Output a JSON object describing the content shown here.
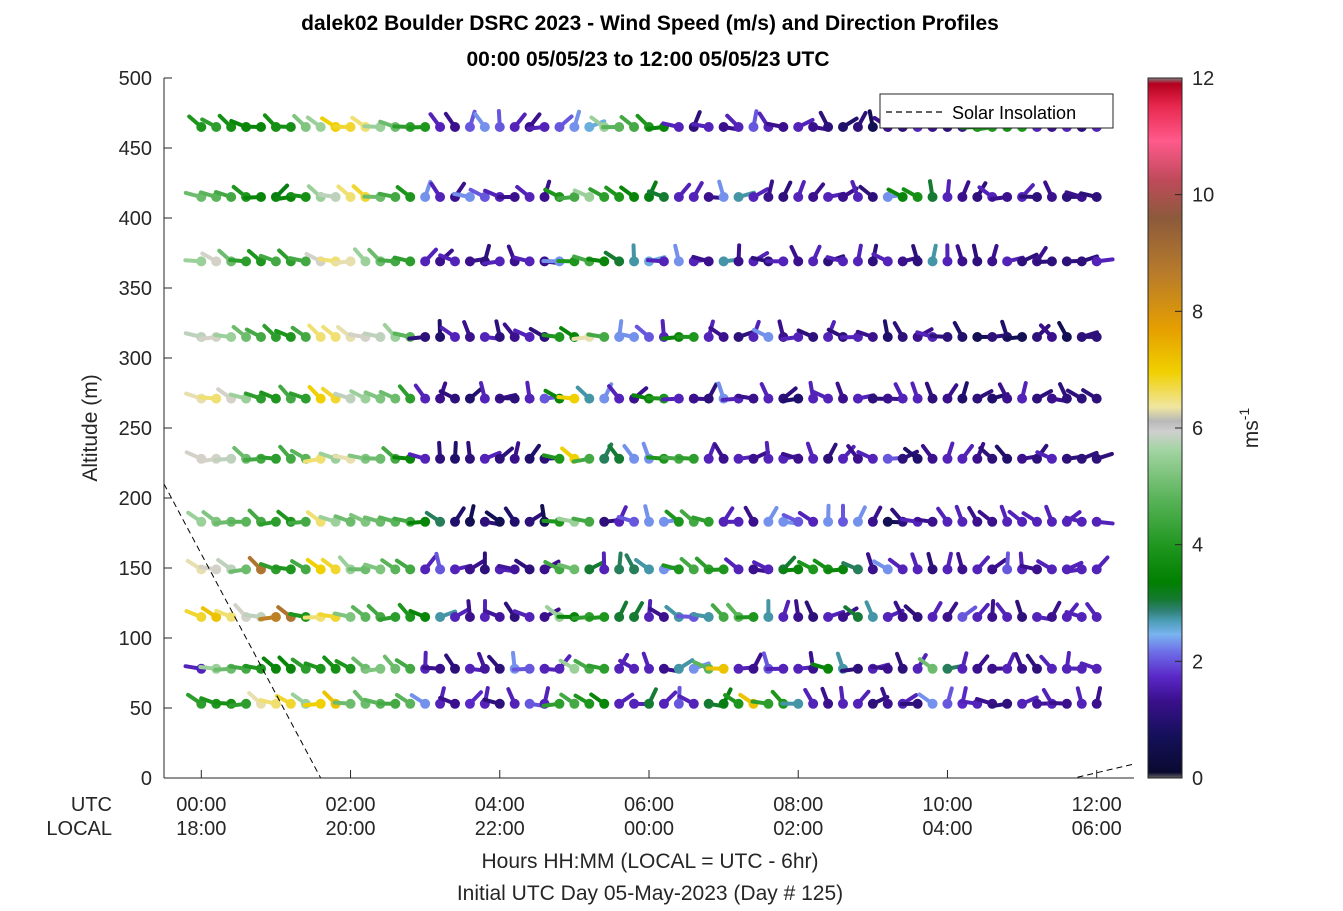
{
  "chart_data": {
    "type": "scatter",
    "title": "dalek02 Boulder DSRC 2023 - Wind Speed (m/s) and Direction Profiles",
    "subtitle": "00:00 05/05/23 to 12:00 05/05/23  UTC",
    "ylabel": "Altitude (m)",
    "xlabel": "Hours HH:MM  (LOCAL = UTC - 6hr)",
    "xlabel2": "Initial UTC Day 05-May-2023 (Day # 125)",
    "xlim": [
      -0.5,
      12.5
    ],
    "ylim": [
      0,
      500
    ],
    "y_ticks": [
      "0",
      "50",
      "100",
      "150",
      "200",
      "250",
      "300",
      "350",
      "400",
      "450",
      "500"
    ],
    "x_row_labels": [
      "UTC",
      "LOCAL"
    ],
    "x_ticks_utc": [
      "00:00",
      "02:00",
      "04:00",
      "06:00",
      "08:00",
      "10:00",
      "12:00"
    ],
    "x_ticks_local": [
      "18:00",
      "20:00",
      "22:00",
      "00:00",
      "02:00",
      "04:00",
      "06:00"
    ],
    "legend": "Solar Insolation",
    "legend_position": "top-right",
    "colorbar": {
      "label_base": "ms",
      "label_exp": "-1",
      "ticks": [
        "0",
        "2",
        "4",
        "6",
        "8",
        "10",
        "12"
      ],
      "range": [
        0,
        12
      ]
    },
    "altitudes": [
      53,
      78,
      115,
      149,
      183,
      228,
      271,
      315,
      369,
      415,
      465
    ],
    "time_step_hours": 0.2,
    "solar_line": [
      [
        -0.5,
        210
      ],
      [
        1.6,
        0
      ],
      [
        11.7,
        0
      ],
      [
        12.5,
        10
      ]
    ],
    "speed_profiles": [
      [
        4.2,
        4.0,
        3.8,
        4.2,
        6.2,
        6.5,
        6.8,
        5.5,
        7.0,
        7.2,
        5.0,
        5.0,
        4.8,
        4.5,
        4.8,
        2.0,
        1.5,
        1.2,
        1.6,
        1.5,
        1.0,
        1.5,
        1.8,
        1.5,
        4.2,
        4.5,
        4.0,
        3.5,
        1.5,
        1.5,
        3.0,
        1.5,
        1.8,
        1.5,
        3.0,
        3.2,
        4.0,
        7.2,
        4.2,
        4.0,
        2.5,
        1.5,
        1.2,
        1.5,
        1.5,
        1.0,
        1.2,
        1.5,
        1.0,
        2.0,
        1.8,
        1.6,
        1.5,
        1.2,
        1.0,
        1.5,
        1.3,
        1.5,
        1.2,
        1.5,
        1.2
      ],
      [
        1.5,
        5.5,
        5.0,
        4.5,
        4.0,
        3.5,
        3.5,
        4.2,
        4.0,
        3.8,
        4.0,
        5.0,
        5.2,
        5.0,
        4.5,
        1.5,
        1.2,
        1.0,
        1.5,
        1.3,
        1.0,
        2.0,
        1.8,
        1.5,
        1.5,
        5.5,
        4.5,
        4.2,
        1.5,
        1.5,
        1.5,
        1.2,
        2.5,
        2.0,
        4.8,
        7.2,
        1.5,
        1.2,
        1.8,
        1.5,
        1.5,
        1.2,
        3.5,
        2.5,
        1.0,
        1.5,
        1.2,
        1.0,
        1.5,
        5.0,
        2.8,
        1.5,
        1.2,
        1.2,
        1.5,
        1.2,
        1.0,
        1.5,
        1.5,
        1.5,
        1.5
      ],
      [
        6.8,
        7.2,
        6.5,
        6.0,
        5.8,
        8.5,
        8.8,
        4.0,
        6.5,
        6.8,
        5.2,
        4.8,
        4.5,
        4.2,
        4.0,
        3.5,
        2.5,
        1.5,
        1.2,
        1.5,
        1.3,
        1.0,
        1.5,
        1.2,
        5.5,
        3.5,
        4.2,
        4.0,
        3.0,
        3.0,
        1.5,
        1.2,
        2.5,
        1.8,
        2.5,
        4.5,
        4.8,
        4.0,
        2.5,
        1.5,
        1.2,
        1.0,
        1.5,
        1.2,
        3.0,
        2.5,
        1.5,
        1.2,
        1.0,
        1.5,
        1.2,
        1.8,
        1.5,
        1.2,
        1.5,
        1.0,
        1.5,
        1.2,
        1.5,
        1.5,
        1.5
      ],
      [
        6.2,
        6.0,
        5.8,
        5.0,
        8.8,
        4.2,
        4.0,
        4.5,
        7.0,
        6.8,
        5.5,
        5.0,
        5.2,
        4.8,
        4.5,
        1.5,
        1.8,
        1.5,
        1.2,
        1.0,
        1.5,
        1.3,
        1.0,
        1.2,
        4.5,
        5.0,
        3.0,
        1.5,
        2.8,
        2.8,
        2.5,
        2.0,
        4.0,
        4.5,
        4.2,
        4.0,
        1.5,
        1.2,
        1.5,
        3.0,
        3.5,
        4.0,
        3.8,
        3.5,
        2.8,
        1.2,
        2.0,
        1.5,
        1.5,
        1.0,
        1.5,
        1.2,
        1.5,
        1.2,
        1.8,
        1.5,
        1.2,
        1.5,
        1.5,
        1.5,
        1.5
      ],
      [
        5.5,
        5.2,
        5.0,
        4.8,
        4.5,
        4.2,
        4.0,
        4.5,
        6.5,
        5.5,
        5.0,
        5.2,
        5.0,
        4.8,
        4.5,
        3.5,
        2.8,
        0.8,
        0.5,
        1.0,
        0.5,
        0.8,
        1.0,
        0.5,
        4.0,
        5.5,
        4.5,
        1.0,
        1.5,
        1.8,
        2.0,
        2.0,
        4.0,
        4.5,
        4.2,
        1.5,
        1.5,
        1.2,
        2.0,
        2.0,
        1.8,
        1.5,
        2.0,
        1.8,
        2.0,
        1.2,
        0.5,
        1.0,
        1.5,
        1.2,
        1.5,
        1.5,
        1.2,
        1.2,
        1.5,
        1.5,
        1.5,
        1.5,
        1.5,
        1.5,
        1.5
      ],
      [
        6.0,
        6.0,
        5.8,
        5.0,
        4.5,
        4.2,
        4.5,
        4.8,
        6.5,
        5.5,
        6.2,
        5.2,
        5.0,
        4.5,
        3.5,
        1.5,
        1.0,
        0.8,
        1.0,
        1.5,
        1.0,
        1.2,
        0.8,
        1.0,
        4.0,
        7.0,
        4.5,
        2.8,
        3.0,
        2.0,
        2.0,
        4.0,
        4.5,
        4.2,
        1.5,
        1.2,
        1.5,
        1.2,
        1.5,
        1.5,
        1.2,
        1.5,
        1.0,
        1.5,
        1.2,
        1.5,
        1.8,
        1.0,
        0.8,
        1.2,
        1.5,
        1.5,
        1.2,
        1.0,
        0.8,
        1.2,
        1.0,
        1.5,
        1.0,
        1.0,
        1.0
      ],
      [
        6.2,
        6.5,
        6.0,
        5.5,
        4.2,
        4.0,
        4.5,
        4.2,
        7.0,
        6.8,
        5.8,
        5.5,
        5.2,
        5.0,
        4.2,
        1.5,
        1.2,
        1.0,
        0.8,
        1.5,
        1.2,
        1.0,
        1.5,
        1.8,
        3.5,
        7.0,
        2.5,
        2.0,
        1.5,
        1.2,
        3.5,
        4.0,
        1.5,
        1.2,
        1.0,
        2.0,
        1.5,
        1.2,
        1.5,
        1.0,
        0.8,
        1.5,
        1.5,
        1.2,
        1.5,
        1.0,
        1.2,
        1.5,
        1.5,
        1.0,
        1.2,
        0.8,
        1.0,
        0.8,
        1.2,
        1.5,
        1.0,
        1.2,
        1.0,
        1.0,
        1.0
      ],
      [
        5.8,
        6.0,
        5.5,
        5.0,
        4.5,
        4.2,
        4.0,
        4.5,
        6.5,
        6.5,
        6.2,
        6.0,
        5.8,
        5.5,
        4.8,
        1.0,
        0.8,
        1.5,
        1.2,
        1.5,
        1.0,
        1.2,
        1.5,
        1.0,
        4.0,
        3.5,
        6.2,
        4.5,
        2.0,
        2.0,
        1.8,
        1.5,
        3.5,
        4.0,
        1.5,
        1.2,
        1.0,
        1.5,
        2.0,
        1.2,
        1.5,
        1.0,
        1.5,
        1.0,
        1.5,
        1.2,
        0.8,
        1.0,
        1.2,
        1.5,
        1.0,
        0.8,
        0.5,
        1.0,
        0.8,
        0.5,
        1.0,
        1.2,
        0.5,
        1.0,
        1.0
      ],
      [
        5.5,
        6.0,
        5.0,
        4.2,
        4.0,
        4.5,
        4.2,
        4.5,
        6.0,
        6.5,
        6.2,
        5.5,
        5.0,
        4.5,
        4.2,
        1.5,
        1.2,
        1.5,
        1.2,
        1.0,
        1.5,
        1.2,
        1.5,
        1.2,
        2.0,
        4.0,
        4.5,
        3.5,
        3.0,
        2.5,
        2.2,
        1.5,
        2.0,
        1.5,
        1.2,
        2.5,
        1.2,
        1.5,
        1.0,
        1.5,
        1.2,
        1.5,
        1.0,
        1.5,
        1.5,
        1.0,
        1.5,
        1.2,
        1.0,
        2.5,
        1.5,
        1.2,
        1.0,
        1.2,
        1.5,
        1.0,
        1.2,
        1.0,
        1.0,
        1.0,
        1.5
      ],
      [
        5.0,
        4.8,
        4.5,
        4.0,
        3.5,
        3.2,
        3.5,
        3.8,
        5.5,
        5.8,
        6.5,
        6.8,
        5.0,
        4.5,
        4.0,
        2.0,
        1.5,
        1.2,
        2.0,
        1.8,
        1.5,
        1.2,
        1.5,
        1.2,
        4.0,
        4.5,
        5.5,
        4.2,
        4.0,
        3.5,
        3.2,
        3.0,
        1.5,
        1.5,
        1.2,
        2.0,
        2.5,
        1.5,
        1.2,
        1.0,
        1.5,
        1.2,
        1.5,
        1.2,
        1.5,
        1.0,
        2.0,
        3.5,
        3.8,
        3.0,
        1.5,
        1.2,
        1.0,
        1.5,
        1.2,
        1.5,
        1.0,
        1.2,
        1.0,
        1.2,
        1.0
      ],
      [
        4.0,
        4.2,
        3.8,
        3.5,
        3.5,
        3.8,
        3.8,
        5.2,
        5.5,
        7.0,
        6.8,
        6.5,
        5.5,
        5.0,
        4.2,
        4.0,
        1.5,
        1.2,
        1.8,
        2.0,
        1.8,
        1.5,
        1.2,
        1.5,
        1.8,
        2.0,
        2.2,
        5.5,
        4.8,
        4.5,
        4.0,
        3.5,
        1.5,
        1.0,
        1.5,
        1.2,
        1.5,
        1.8,
        1.5,
        1.2,
        1.5,
        1.2,
        1.0,
        0.8,
        1.0,
        0.5,
        1.2,
        1.0,
        1.5,
        1.2,
        1.0,
        1.2,
        3.5,
        4.0,
        3.8,
        4.0,
        1.5,
        1.2,
        1.5,
        1.0,
        1.5
      ]
    ]
  }
}
